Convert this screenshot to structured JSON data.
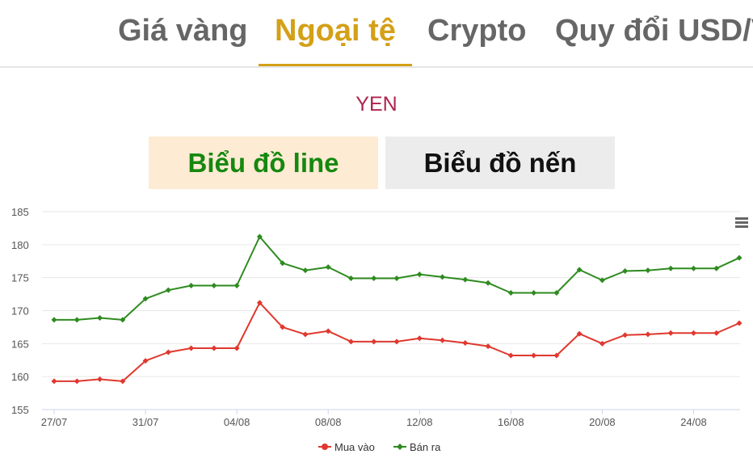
{
  "tabs": [
    {
      "label": "Giá vàng",
      "active": false
    },
    {
      "label": "Ngoại tệ",
      "active": true
    },
    {
      "label": "Crypto",
      "active": false
    },
    {
      "label": "Quy đổi USD/V",
      "active": false
    }
  ],
  "currency_title": "YEN",
  "chart_toggle": {
    "line_label": "Biểu đồ line",
    "candle_label": "Biểu đồ nến",
    "selected": "line"
  },
  "colors": {
    "accent": "#d4a017",
    "buy": "#e0382e",
    "sell": "#2e8b1f",
    "title": "#b0234e"
  },
  "chart_menu_icon": "hamburger-menu-icon",
  "chart_data": {
    "type": "line",
    "title": "",
    "xlabel": "",
    "ylabel": "",
    "ylim": [
      155,
      185
    ],
    "yticks": [
      155,
      160,
      165,
      170,
      175,
      180,
      185
    ],
    "grid": true,
    "legend_position": "bottom-center",
    "x": [
      "27/07",
      "28/07",
      "29/07",
      "30/07",
      "31/07",
      "01/08",
      "02/08",
      "03/08",
      "04/08",
      "05/08",
      "06/08",
      "07/08",
      "08/08",
      "09/08",
      "10/08",
      "11/08",
      "12/08",
      "13/08",
      "14/08",
      "15/08",
      "16/08",
      "17/08",
      "18/08",
      "19/08",
      "20/08",
      "21/08",
      "22/08",
      "23/08",
      "24/08",
      "25/08",
      "26/08"
    ],
    "x_tick_labels": [
      "27/07",
      "31/07",
      "04/08",
      "08/08",
      "12/08",
      "16/08",
      "20/08",
      "24/08"
    ],
    "series": [
      {
        "name": "Mua vào",
        "color": "#e0382e",
        "values": [
          159.3,
          159.3,
          159.6,
          159.3,
          162.4,
          163.7,
          164.3,
          164.3,
          164.3,
          171.2,
          167.5,
          166.4,
          166.9,
          165.3,
          165.3,
          165.3,
          165.8,
          165.5,
          165.1,
          164.6,
          163.2,
          163.2,
          163.2,
          166.5,
          165.0,
          166.3,
          166.4,
          166.6,
          166.6,
          166.6,
          168.1
        ]
      },
      {
        "name": "Bán ra",
        "color": "#2e8b1f",
        "values": [
          168.6,
          168.6,
          168.9,
          168.6,
          171.8,
          173.1,
          173.8,
          173.8,
          173.8,
          181.2,
          177.2,
          176.1,
          176.6,
          174.9,
          174.9,
          174.9,
          175.5,
          175.1,
          174.7,
          174.2,
          172.7,
          172.7,
          172.7,
          176.2,
          174.6,
          176.0,
          176.1,
          176.4,
          176.4,
          176.4,
          178.0
        ]
      }
    ]
  }
}
